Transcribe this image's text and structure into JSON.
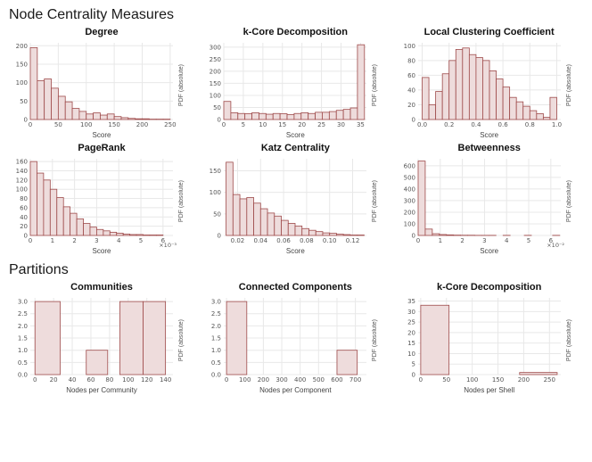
{
  "page": {
    "section1_title": "Node Centrality Measures",
    "section2_title": "Partitions"
  },
  "colors": {
    "bar_fill": "#eedcdc",
    "bar_edge": "#9e4a4a",
    "grid": "#e8e8e8",
    "plot_bg": "#ffffff"
  },
  "chart_data": [
    {
      "id": "degree",
      "type": "bar",
      "title": "Degree",
      "xlabel": "Score",
      "ylabel": "PDF (absolute)",
      "xlim": [
        0,
        255
      ],
      "ylim": [
        0,
        208
      ],
      "xticks": [
        0,
        50,
        100,
        150,
        200,
        250
      ],
      "xtick_labels": [
        "0",
        "50",
        "100",
        "150",
        "200",
        "250"
      ],
      "yticks": [
        0,
        50,
        100,
        150,
        200
      ],
      "ytick_labels": [
        "0",
        "50",
        "100",
        "150",
        "200"
      ],
      "x_offset_label": "",
      "bins": [
        [
          0,
          12.5,
          195
        ],
        [
          12.5,
          25,
          105
        ],
        [
          25,
          37.5,
          110
        ],
        [
          37.5,
          50,
          85
        ],
        [
          50,
          62.5,
          63
        ],
        [
          62.5,
          75,
          48
        ],
        [
          75,
          87.5,
          30
        ],
        [
          87.5,
          100,
          22
        ],
        [
          100,
          112.5,
          15
        ],
        [
          112.5,
          125,
          18
        ],
        [
          125,
          137.5,
          12
        ],
        [
          137.5,
          150,
          15
        ],
        [
          150,
          162.5,
          8
        ],
        [
          162.5,
          175,
          5
        ],
        [
          175,
          187.5,
          3
        ],
        [
          187.5,
          200,
          2
        ],
        [
          200,
          212.5,
          2
        ],
        [
          212.5,
          225,
          1
        ],
        [
          225,
          237.5,
          1
        ],
        [
          237.5,
          250,
          1
        ]
      ]
    },
    {
      "id": "kcore",
      "type": "bar",
      "title": "k-Core Decomposition",
      "xlabel": "Score",
      "ylabel": "PDF (absolute)",
      "xlim": [
        0,
        36.5
      ],
      "ylim": [
        0,
        318
      ],
      "xticks": [
        0,
        5,
        10,
        15,
        20,
        25,
        30,
        35
      ],
      "xtick_labels": [
        "0",
        "5",
        "10",
        "15",
        "20",
        "25",
        "30",
        "35"
      ],
      "yticks": [
        0,
        50,
        100,
        150,
        200,
        250,
        300
      ],
      "ytick_labels": [
        "0",
        "50",
        "100",
        "150",
        "200",
        "250",
        "300"
      ],
      "x_offset_label": "",
      "bins": [
        [
          0,
          1.8,
          75
        ],
        [
          1.8,
          3.6,
          28
        ],
        [
          3.6,
          5.4,
          25
        ],
        [
          5.4,
          7.2,
          24
        ],
        [
          7.2,
          9,
          28
        ],
        [
          9,
          10.8,
          25
        ],
        [
          10.8,
          12.6,
          22
        ],
        [
          12.6,
          14.4,
          25
        ],
        [
          14.4,
          16.2,
          24
        ],
        [
          16.2,
          18,
          20
        ],
        [
          18,
          19.8,
          25
        ],
        [
          19.8,
          21.6,
          28
        ],
        [
          21.6,
          23.4,
          25
        ],
        [
          23.4,
          25.2,
          30
        ],
        [
          25.2,
          27,
          30
        ],
        [
          27,
          28.8,
          33
        ],
        [
          28.8,
          30.6,
          38
        ],
        [
          30.6,
          32.4,
          42
        ],
        [
          32.4,
          34.2,
          48
        ],
        [
          34.2,
          36,
          310
        ]
      ]
    },
    {
      "id": "lcc",
      "type": "bar",
      "title": "Local Clustering Coefficient",
      "xlabel": "Score",
      "ylabel": "PDF (absolute)",
      "xlim": [
        -0.03,
        1.03
      ],
      "ylim": [
        0,
        104
      ],
      "xticks": [
        0,
        0.2,
        0.4,
        0.6,
        0.8,
        1.0
      ],
      "xtick_labels": [
        "0.0",
        "0.2",
        "0.4",
        "0.6",
        "0.8",
        "1.0"
      ],
      "yticks": [
        0,
        20,
        40,
        60,
        80,
        100
      ],
      "ytick_labels": [
        "0",
        "20",
        "40",
        "60",
        "80",
        "100"
      ],
      "x_offset_label": "",
      "bins": [
        [
          0,
          0.05,
          57
        ],
        [
          0.05,
          0.1,
          20
        ],
        [
          0.1,
          0.15,
          38
        ],
        [
          0.15,
          0.2,
          62
        ],
        [
          0.2,
          0.25,
          80
        ],
        [
          0.25,
          0.3,
          95
        ],
        [
          0.3,
          0.35,
          97
        ],
        [
          0.35,
          0.4,
          88
        ],
        [
          0.4,
          0.45,
          84
        ],
        [
          0.45,
          0.5,
          80
        ],
        [
          0.5,
          0.55,
          66
        ],
        [
          0.55,
          0.6,
          55
        ],
        [
          0.6,
          0.65,
          44
        ],
        [
          0.65,
          0.7,
          30
        ],
        [
          0.7,
          0.75,
          24
        ],
        [
          0.75,
          0.8,
          18
        ],
        [
          0.8,
          0.85,
          12
        ],
        [
          0.85,
          0.9,
          8
        ],
        [
          0.9,
          0.95,
          3
        ],
        [
          0.95,
          1.0,
          30
        ]
      ]
    },
    {
      "id": "pagerank",
      "type": "bar",
      "title": "PageRank",
      "xlabel": "Score",
      "ylabel": "PDF (absolute)",
      "xlim": [
        0,
        6.45
      ],
      "ylim": [
        0,
        166
      ],
      "xticks": [
        0,
        1,
        2,
        3,
        4,
        5,
        6
      ],
      "xtick_labels": [
        "0",
        "1",
        "2",
        "3",
        "4",
        "5",
        "6"
      ],
      "yticks": [
        0,
        20,
        40,
        60,
        80,
        100,
        120,
        140,
        160
      ],
      "ytick_labels": [
        "0",
        "20",
        "40",
        "60",
        "80",
        "100",
        "120",
        "140",
        "160"
      ],
      "x_offset_label": "×10⁻³",
      "bins": [
        [
          0,
          0.3,
          160
        ],
        [
          0.3,
          0.6,
          135
        ],
        [
          0.6,
          0.9,
          120
        ],
        [
          0.9,
          1.2,
          100
        ],
        [
          1.2,
          1.5,
          82
        ],
        [
          1.5,
          1.8,
          62
        ],
        [
          1.8,
          2.1,
          48
        ],
        [
          2.1,
          2.4,
          36
        ],
        [
          2.4,
          2.7,
          26
        ],
        [
          2.7,
          3.0,
          18
        ],
        [
          3.0,
          3.3,
          13
        ],
        [
          3.3,
          3.6,
          10
        ],
        [
          3.6,
          3.9,
          7
        ],
        [
          3.9,
          4.2,
          5
        ],
        [
          4.2,
          4.5,
          3
        ],
        [
          4.5,
          4.8,
          2
        ],
        [
          4.8,
          5.1,
          2
        ],
        [
          5.1,
          5.4,
          1
        ],
        [
          5.4,
          5.7,
          1
        ],
        [
          5.7,
          6.0,
          1
        ]
      ]
    },
    {
      "id": "katz",
      "type": "bar",
      "title": "Katz Centrality",
      "xlabel": "Score",
      "ylabel": "PDF (absolute)",
      "xlim": [
        0.008,
        0.132
      ],
      "ylim": [
        0,
        178
      ],
      "xticks": [
        0.02,
        0.04,
        0.06,
        0.08,
        0.1,
        0.12
      ],
      "xtick_labels": [
        "0.02",
        "0.04",
        "0.06",
        "0.08",
        "0.10",
        "0.12"
      ],
      "yticks": [
        0,
        50,
        100,
        150
      ],
      "ytick_labels": [
        "0",
        "50",
        "100",
        "150"
      ],
      "x_offset_label": "",
      "bins": [
        [
          0.01,
          0.016,
          170
        ],
        [
          0.016,
          0.022,
          95
        ],
        [
          0.022,
          0.028,
          85
        ],
        [
          0.028,
          0.034,
          88
        ],
        [
          0.034,
          0.04,
          75
        ],
        [
          0.04,
          0.046,
          62
        ],
        [
          0.046,
          0.052,
          52
        ],
        [
          0.052,
          0.058,
          45
        ],
        [
          0.058,
          0.064,
          35
        ],
        [
          0.064,
          0.07,
          28
        ],
        [
          0.07,
          0.076,
          22
        ],
        [
          0.076,
          0.082,
          16
        ],
        [
          0.082,
          0.088,
          12
        ],
        [
          0.088,
          0.094,
          9
        ],
        [
          0.094,
          0.1,
          6
        ],
        [
          0.1,
          0.106,
          5
        ],
        [
          0.106,
          0.112,
          3
        ],
        [
          0.112,
          0.118,
          2
        ],
        [
          0.118,
          0.124,
          1
        ],
        [
          0.124,
          0.13,
          1
        ]
      ]
    },
    {
      "id": "betweenness",
      "type": "bar",
      "title": "Betweenness",
      "xlabel": "Score",
      "ylabel": "PDF (absolute)",
      "xlim": [
        0,
        6.45
      ],
      "ylim": [
        0,
        660
      ],
      "xticks": [
        0,
        1,
        2,
        3,
        4,
        5,
        6
      ],
      "xtick_labels": [
        "0",
        "1",
        "2",
        "3",
        "4",
        "5",
        "6"
      ],
      "yticks": [
        0,
        100,
        200,
        300,
        400,
        500,
        600
      ],
      "ytick_labels": [
        "0",
        "100",
        "200",
        "300",
        "400",
        "500",
        "600"
      ],
      "x_offset_label": "×10⁻²",
      "bins": [
        [
          0,
          0.32,
          640
        ],
        [
          0.32,
          0.64,
          55
        ],
        [
          0.64,
          0.96,
          15
        ],
        [
          0.96,
          1.28,
          8
        ],
        [
          1.28,
          1.6,
          5
        ],
        [
          1.6,
          1.92,
          3
        ],
        [
          1.92,
          2.24,
          2
        ],
        [
          2.24,
          2.56,
          2
        ],
        [
          2.56,
          2.88,
          1
        ],
        [
          2.88,
          3.2,
          1
        ],
        [
          3.2,
          3.52,
          1
        ],
        [
          3.52,
          3.84,
          0
        ],
        [
          3.84,
          4.16,
          1
        ],
        [
          4.16,
          4.48,
          0
        ],
        [
          4.48,
          4.8,
          0
        ],
        [
          4.8,
          5.12,
          1
        ],
        [
          5.12,
          5.44,
          0
        ],
        [
          5.44,
          5.76,
          0
        ],
        [
          5.76,
          6.08,
          0
        ],
        [
          6.08,
          6.4,
          1
        ]
      ]
    },
    {
      "id": "communities",
      "type": "bar",
      "title": "Communities",
      "xlabel": "Nodes per Community",
      "ylabel": "PDF (absolute)",
      "xlim": [
        -5,
        148
      ],
      "ylim": [
        0,
        3.15
      ],
      "xticks": [
        0,
        20,
        40,
        60,
        80,
        100,
        120,
        140
      ],
      "xtick_labels": [
        "0",
        "20",
        "40",
        "60",
        "80",
        "100",
        "120",
        "140"
      ],
      "yticks": [
        0,
        0.5,
        1,
        1.5,
        2,
        2.5,
        3
      ],
      "ytick_labels": [
        "0.0",
        "0.5",
        "1.0",
        "1.5",
        "2.0",
        "2.5",
        "3.0"
      ],
      "x_offset_label": "",
      "bins": [
        [
          0,
          27,
          3
        ],
        [
          55,
          78,
          1
        ],
        [
          91,
          116,
          3
        ],
        [
          116,
          140,
          3
        ]
      ]
    },
    {
      "id": "components",
      "type": "bar",
      "title": "Connected Components",
      "xlabel": "Nodes per Component",
      "ylabel": "PDF (absolute)",
      "xlim": [
        -15,
        760
      ],
      "ylim": [
        0,
        3.15
      ],
      "xticks": [
        0,
        100,
        200,
        300,
        400,
        500,
        600,
        700
      ],
      "xtick_labels": [
        "0",
        "100",
        "200",
        "300",
        "400",
        "500",
        "600",
        "700"
      ],
      "yticks": [
        0,
        0.5,
        1,
        1.5,
        2,
        2.5,
        3
      ],
      "ytick_labels": [
        "0.0",
        "0.5",
        "1.0",
        "1.5",
        "2.0",
        "2.5",
        "3.0"
      ],
      "x_offset_label": "",
      "bins": [
        [
          0,
          110,
          3
        ],
        [
          600,
          710,
          1
        ]
      ]
    },
    {
      "id": "kcore-shells",
      "type": "bar",
      "title": "k-Core Decomposition",
      "xlabel": "Nodes per Shell",
      "ylabel": "PDF (absolute)",
      "xlim": [
        -5,
        272
      ],
      "ylim": [
        0,
        36.5
      ],
      "xticks": [
        0,
        50,
        100,
        150,
        200,
        250
      ],
      "xtick_labels": [
        "0",
        "50",
        "100",
        "150",
        "200",
        "250"
      ],
      "yticks": [
        0,
        5,
        10,
        15,
        20,
        25,
        30,
        35
      ],
      "ytick_labels": [
        "0",
        "5",
        "10",
        "15",
        "20",
        "25",
        "30",
        "35"
      ],
      "x_offset_label": "",
      "bins": [
        [
          0,
          55,
          33
        ],
        [
          192,
          265,
          1
        ]
      ]
    }
  ]
}
